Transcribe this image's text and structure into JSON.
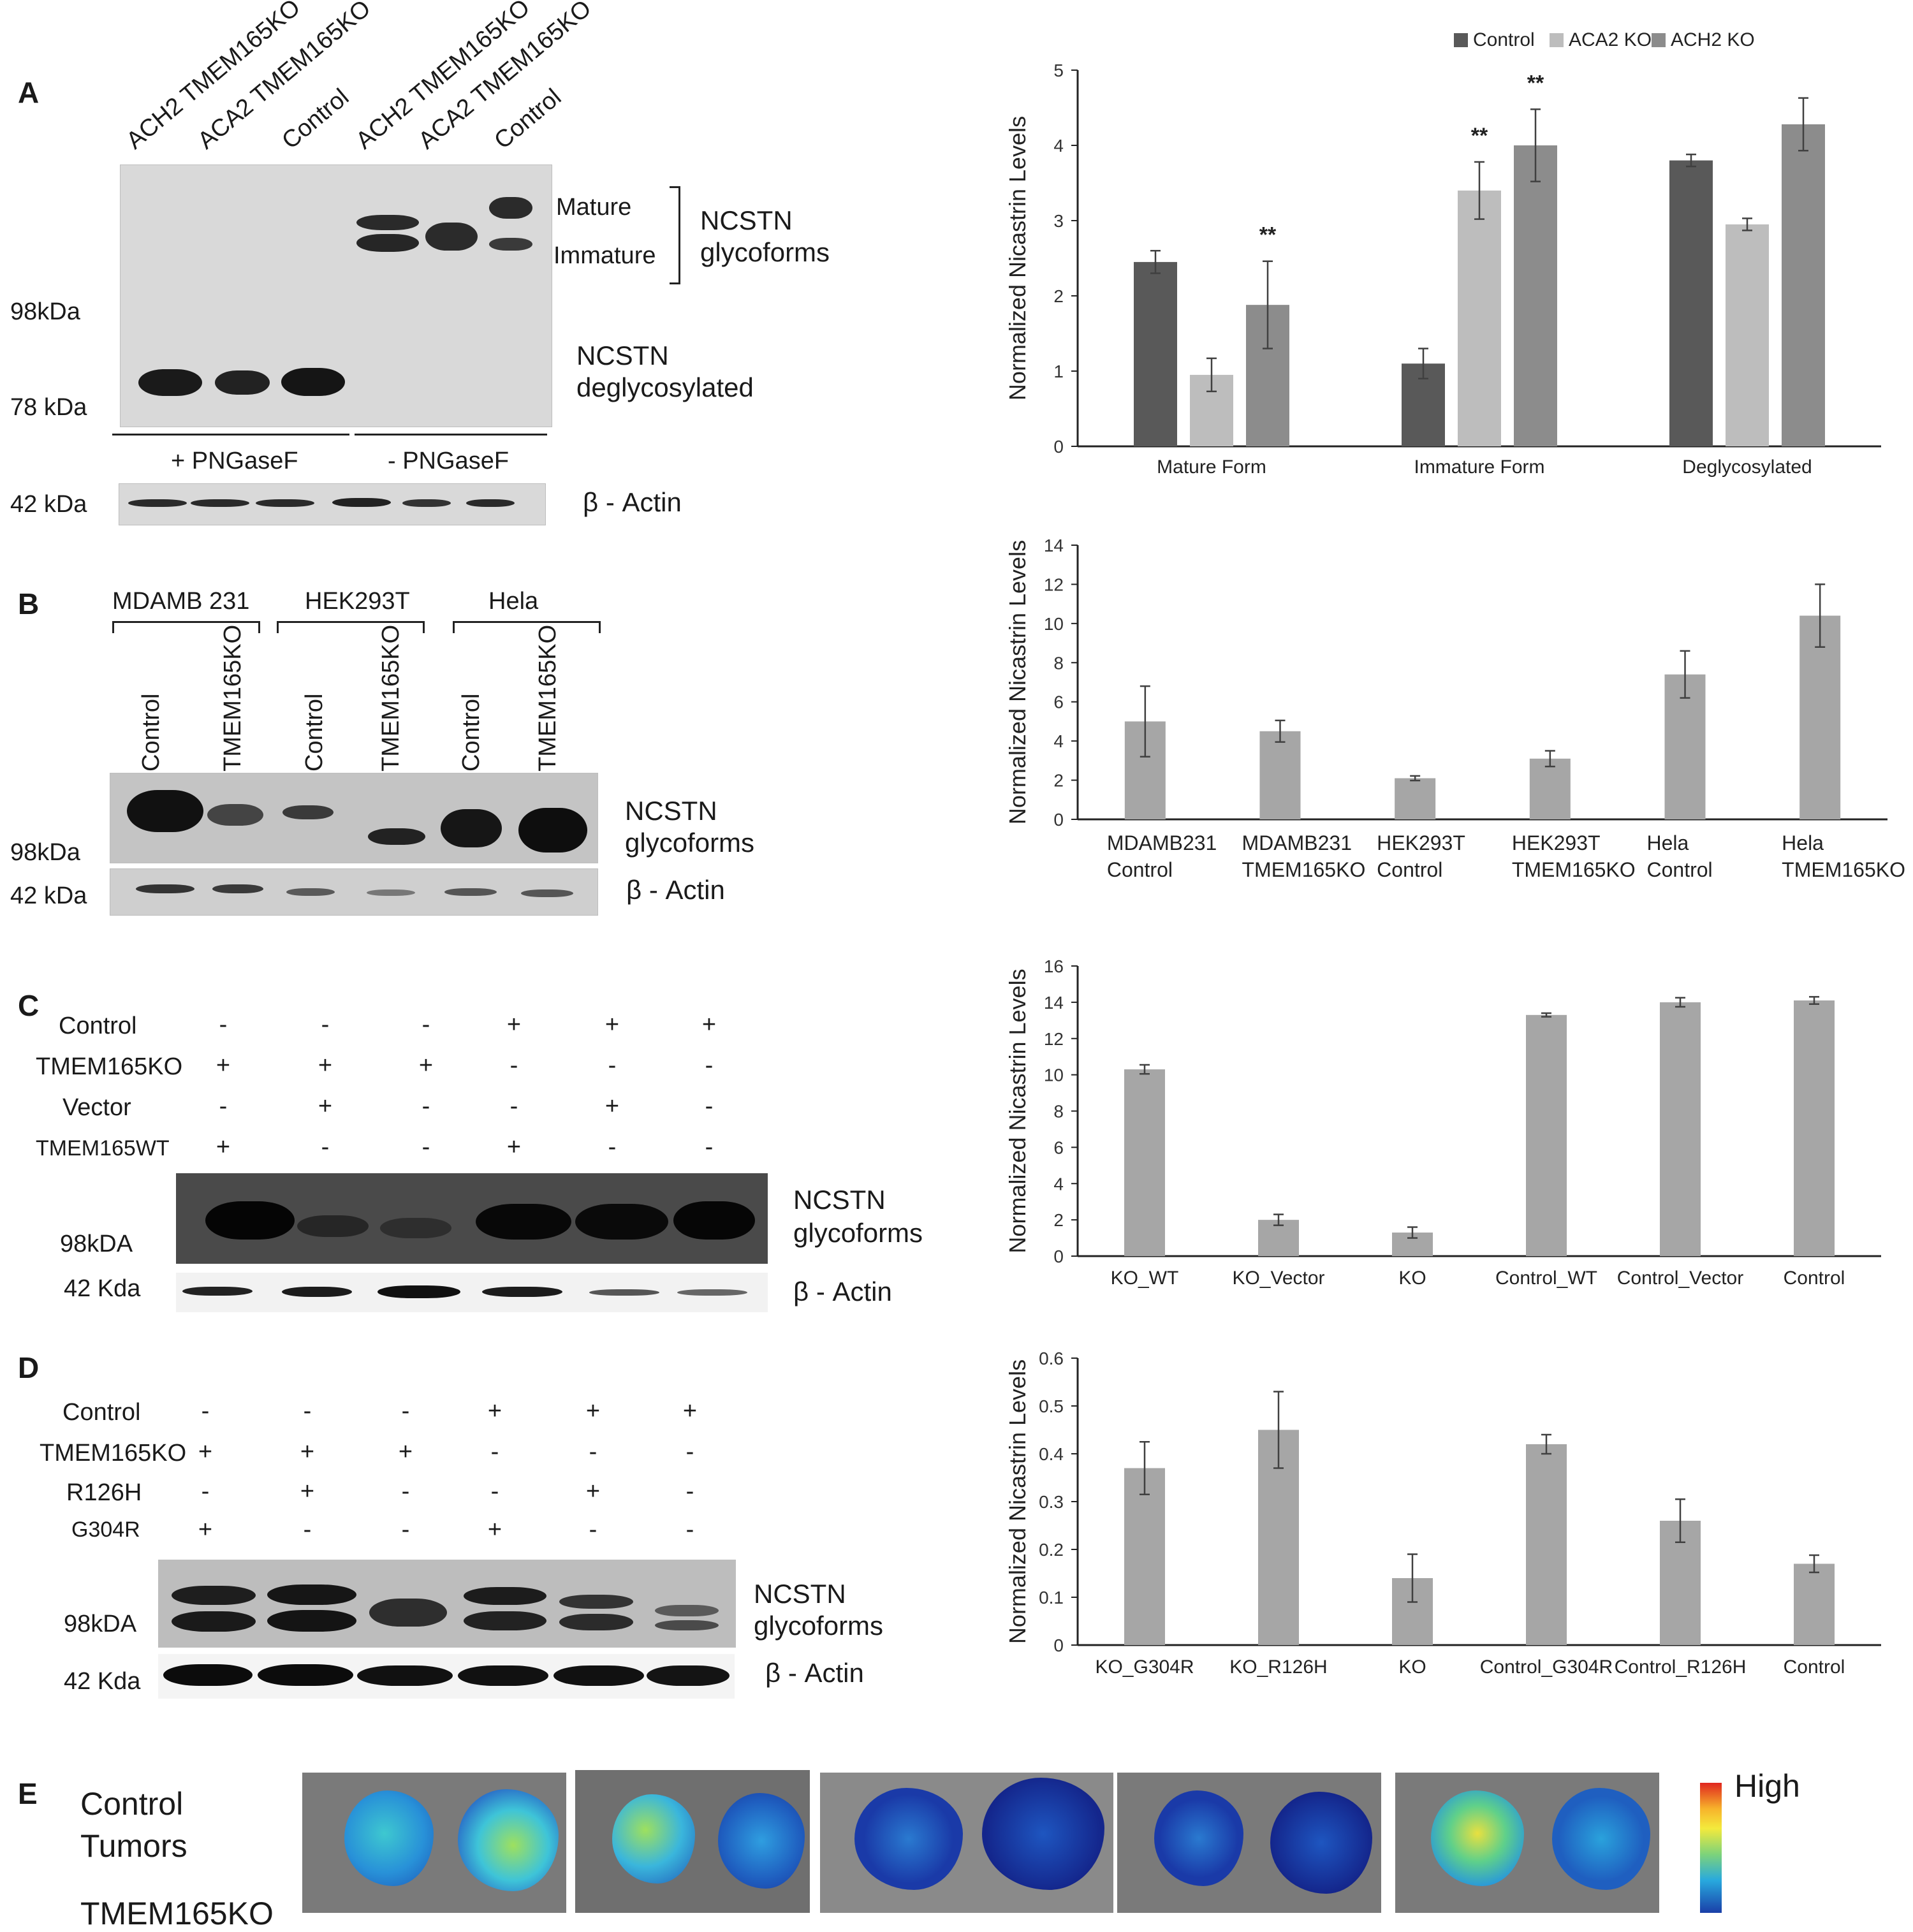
{
  "panels": {
    "A": {
      "letter": "A",
      "lanes": [
        "ACH2 TMEM165KO",
        "ACA2 TMEM165KO",
        "Control",
        "ACH2 TMEM165KO",
        "ACA2 TMEM165KO",
        "Control"
      ],
      "mature": "Mature",
      "immature": "Immature",
      "glyco_line1": "NCSTN",
      "glyco_line2": "glycoforms",
      "degly_line1": "NCSTN",
      "degly_line2": "deglycosylated",
      "mw_98": "98kDa",
      "mw_78": "78 kDa",
      "mw_42": "42 kDa",
      "pngase_plus": "+ PNGaseF",
      "pngase_minus": "- PNGaseF",
      "actin": "β -  Actin"
    },
    "B": {
      "letter": "B",
      "groups": [
        "MDAMB 231",
        "HEK293T",
        "Hela"
      ],
      "lanes": [
        "Control",
        "TMEM165KO",
        "Control",
        "TMEM165KO",
        "Control",
        "TMEM165KO"
      ],
      "glyco_line1": "NCSTN",
      "glyco_line2": "glycoforms",
      "mw_98": "98kDa",
      "mw_42": "42 kDa",
      "actin": "β -  Actin"
    },
    "C": {
      "letter": "C",
      "rows": [
        {
          "label": "Control",
          "signs": [
            "-",
            "-",
            "-",
            "+",
            "+",
            "+"
          ]
        },
        {
          "label": "TMEM165KO",
          "signs": [
            "+",
            "+",
            "+",
            "-",
            "-",
            "-"
          ]
        },
        {
          "label": "Vector",
          "signs": [
            "-",
            "+",
            "-",
            "-",
            "+",
            "-"
          ]
        },
        {
          "label": "TMEM165WT",
          "signs": [
            "+",
            "-",
            "-",
            "+",
            "-",
            "-"
          ]
        }
      ],
      "glyco_line1": "NCSTN",
      "glyco_line2": "glycoforms",
      "mw_98": "98kDA",
      "mw_42": "42 Kda",
      "actin": "β -  Actin"
    },
    "D": {
      "letter": "D",
      "rows": [
        {
          "label": "Control",
          "signs": [
            "-",
            "-",
            "-",
            "+",
            "+",
            "+"
          ]
        },
        {
          "label": "TMEM165KO",
          "signs": [
            "+",
            "+",
            "+",
            "-",
            "-",
            "-"
          ]
        },
        {
          "label": "R126H",
          "signs": [
            "-",
            "+",
            "-",
            "-",
            "+",
            "-"
          ]
        },
        {
          "label": "G304R",
          "signs": [
            "+",
            "-",
            "-",
            "+",
            "-",
            "-"
          ]
        }
      ],
      "glyco_line1": "NCSTN",
      "glyco_line2": "glycoforms",
      "mw_98": "98kDA",
      "mw_42": "42 Kda",
      "actin": "β -  Actin"
    },
    "E": {
      "letter": "E",
      "row1_line1": "Control",
      "row1_line2": "Tumors",
      "row2_partial": "TMEM165KO",
      "colorbar_label": "High"
    }
  },
  "colors": {
    "control_bar": "#595959",
    "aca2_bar": "#bdbdbd",
    "ach2_bar": "#8c8c8c",
    "single_bar": "#a6a6a6",
    "error_bar": "#404040"
  },
  "chart_data": [
    {
      "type": "bar",
      "categories": [
        "Mature Form",
        "Immature Form",
        "Deglycosylated"
      ],
      "series": [
        {
          "name": "Control",
          "values": [
            2.45,
            1.1,
            3.8
          ],
          "errors": [
            0.15,
            0.2,
            0.08
          ]
        },
        {
          "name": "ACA2 KO",
          "values": [
            0.95,
            3.4,
            2.95
          ],
          "errors": [
            0.22,
            0.38,
            0.08
          ]
        },
        {
          "name": "ACH2 KO",
          "values": [
            1.88,
            4.0,
            4.28
          ],
          "errors": [
            0.58,
            0.48,
            0.35
          ]
        }
      ],
      "significance": [
        {
          "category": "Mature Form",
          "series": "ACH2 KO",
          "mark": "**"
        },
        {
          "category": "Immature Form",
          "series": "ACA2 KO",
          "mark": "**"
        },
        {
          "category": "Immature Form",
          "series": "ACH2 KO",
          "mark": "**"
        }
      ],
      "ylabel": "Normalized Nicastrin Levels",
      "ylim": [
        0,
        5
      ],
      "yticks": [
        "0",
        "1",
        "2",
        "3",
        "4",
        "5"
      ],
      "legend_position": "top"
    },
    {
      "type": "bar",
      "categories": [
        [
          "MDAMB231",
          "Control"
        ],
        [
          "MDAMB231",
          "TMEM165KO"
        ],
        [
          "HEK293T",
          "Control"
        ],
        [
          "HEK293T",
          "TMEM165KO"
        ],
        [
          "Hela",
          "Control"
        ],
        [
          "Hela",
          "TMEM165KO"
        ]
      ],
      "values": [
        5.0,
        4.5,
        2.1,
        3.1,
        7.4,
        10.4
      ],
      "errors": [
        1.8,
        0.55,
        0.12,
        0.4,
        1.2,
        1.6
      ],
      "ylabel": "Normalized Nicastrin Levels",
      "ylim": [
        0,
        14
      ],
      "yticks": [
        "0",
        "2",
        "4",
        "6",
        "8",
        "10",
        "12",
        "14"
      ]
    },
    {
      "type": "bar",
      "categories": [
        "KO_WT",
        "KO_Vector",
        "KO",
        "Control_WT",
        "Control_Vector",
        "Control"
      ],
      "values": [
        10.3,
        2.0,
        1.3,
        13.3,
        14.0,
        14.1
      ],
      "errors": [
        0.25,
        0.3,
        0.3,
        0.1,
        0.25,
        0.2
      ],
      "ylabel": "Normalized Nicastrin Levels",
      "ylim": [
        0,
        16
      ],
      "yticks": [
        "0",
        "2",
        "4",
        "6",
        "8",
        "10",
        "12",
        "14",
        "16"
      ]
    },
    {
      "type": "bar",
      "categories": [
        "KO_G304R",
        "KO_R126H",
        "KO",
        "Control_G304R",
        "Control_R126H",
        "Control"
      ],
      "values": [
        0.37,
        0.45,
        0.14,
        0.42,
        0.26,
        0.17
      ],
      "errors": [
        0.055,
        0.08,
        0.05,
        0.02,
        0.045,
        0.018
      ],
      "ylabel": "Normalized Nicastrin Levels",
      "ylim": [
        0,
        0.6
      ],
      "yticks": [
        "0",
        "0.1",
        "0.2",
        "0.3",
        "0.4",
        "0.5",
        "0.6"
      ]
    }
  ]
}
